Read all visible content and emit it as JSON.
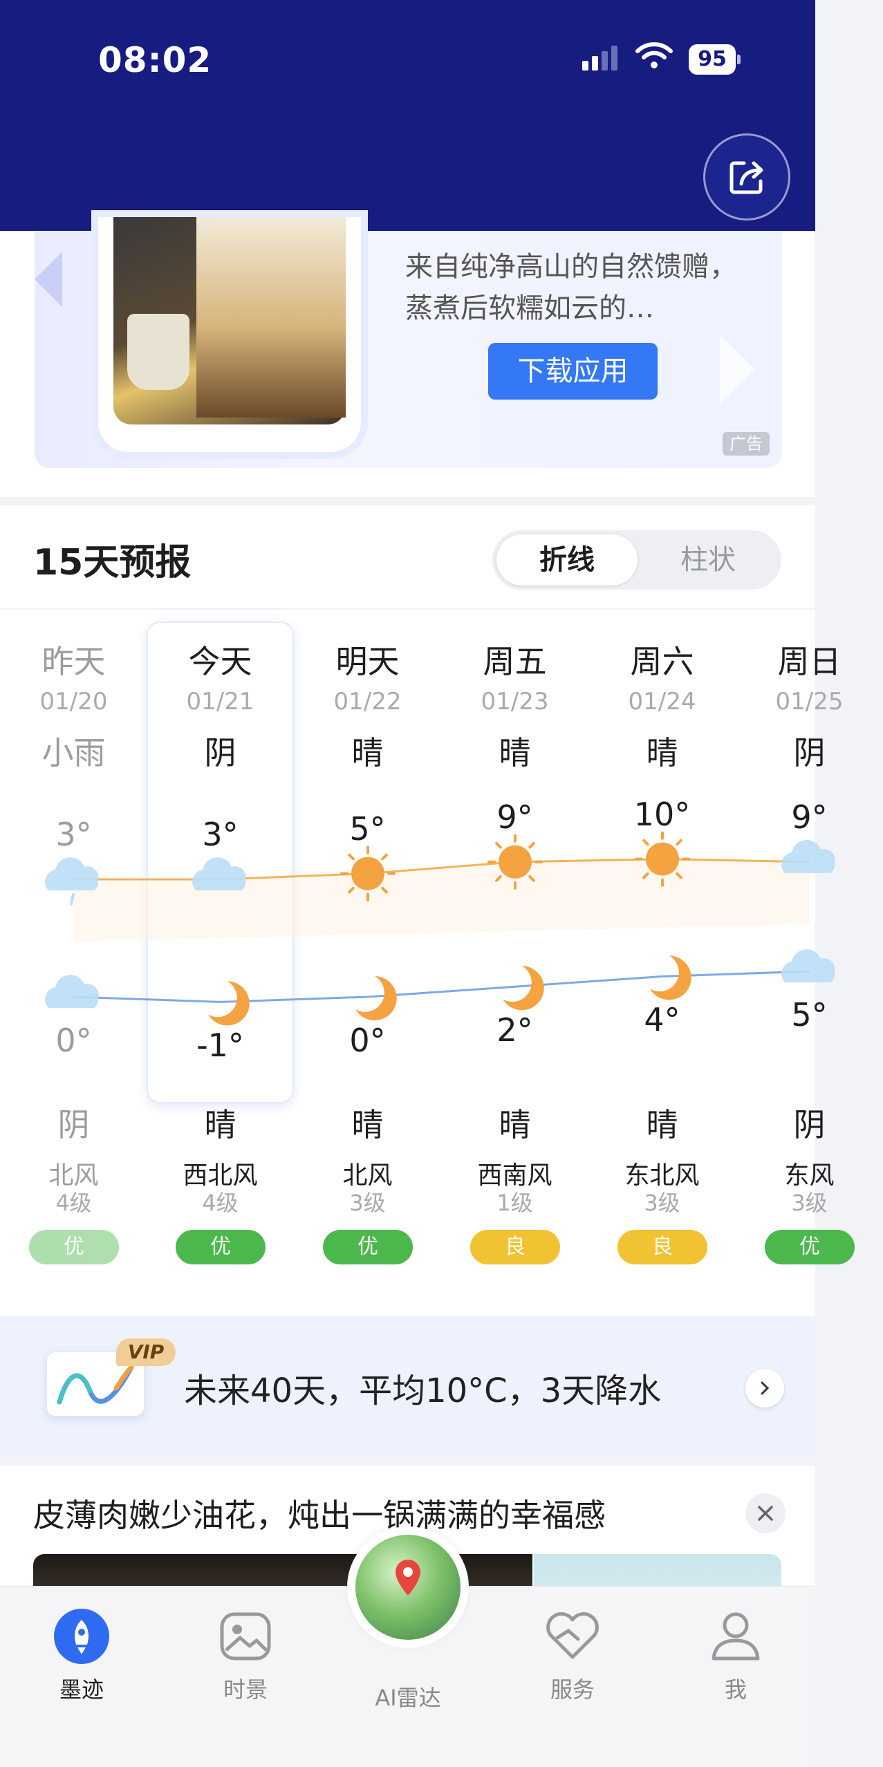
{
  "status": {
    "time": "08:02",
    "battery": "95"
  },
  "ad": {
    "text": "来自纯净高山的自然馈赠，蒸煮后软糯如云的…",
    "button_label": "下载应用",
    "tag": "广告"
  },
  "forecast": {
    "title": "15天预报",
    "toggle_line": "折线",
    "toggle_bar": "柱状",
    "days": [
      {
        "name": "昨天",
        "date": "01/20",
        "day_weather": "小雨",
        "high": "3°",
        "low": "0°",
        "night_weather": "阴",
        "wind": "北风",
        "wind_level": "4级",
        "aqi": "优"
      },
      {
        "name": "今天",
        "date": "01/21",
        "day_weather": "阴",
        "high": "3°",
        "low": "-1°",
        "night_weather": "晴",
        "wind": "西北风",
        "wind_level": "4级",
        "aqi": "优"
      },
      {
        "name": "明天",
        "date": "01/22",
        "day_weather": "晴",
        "high": "5°",
        "low": "0°",
        "night_weather": "晴",
        "wind": "北风",
        "wind_level": "3级",
        "aqi": "优"
      },
      {
        "name": "周五",
        "date": "01/23",
        "day_weather": "晴",
        "high": "9°",
        "low": "2°",
        "night_weather": "晴",
        "wind": "西南风",
        "wind_level": "1级",
        "aqi": "良"
      },
      {
        "name": "周六",
        "date": "01/24",
        "day_weather": "晴",
        "high": "10°",
        "low": "4°",
        "night_weather": "晴",
        "wind": "东北风",
        "wind_level": "3级",
        "aqi": "良"
      },
      {
        "name": "周日",
        "date": "01/25",
        "day_weather": "阴",
        "high": "9°",
        "low": "5°",
        "night_weather": "阴",
        "wind": "东风",
        "wind_level": "3级",
        "aqi": "优"
      }
    ],
    "colors": {
      "aqi_good": "#4cb84c",
      "aqi_moderate": "#f1c232",
      "high_line": "#f2b35c",
      "low_line": "#7fa8e8",
      "sun": "#f4a340",
      "cloud": "#b9def6"
    }
  },
  "chart_data": {
    "type": "line",
    "categories": [
      "01/20",
      "01/21",
      "01/22",
      "01/23",
      "01/24",
      "01/25"
    ],
    "series": [
      {
        "values": [
          3,
          3,
          5,
          9,
          10,
          9
        ]
      },
      {
        "values": [
          0,
          -1,
          0,
          2,
          4,
          5
        ]
      }
    ]
  },
  "vip": {
    "badge": "VIP",
    "text": "未来40天，平均10°C，3天降水"
  },
  "news": {
    "title": "皮薄肉嫩少油花，炖出一锅满满的幸福感"
  },
  "tabbar": {
    "tabs": [
      "墨迹",
      "时景",
      "AI雷达",
      "服务",
      "我"
    ]
  }
}
